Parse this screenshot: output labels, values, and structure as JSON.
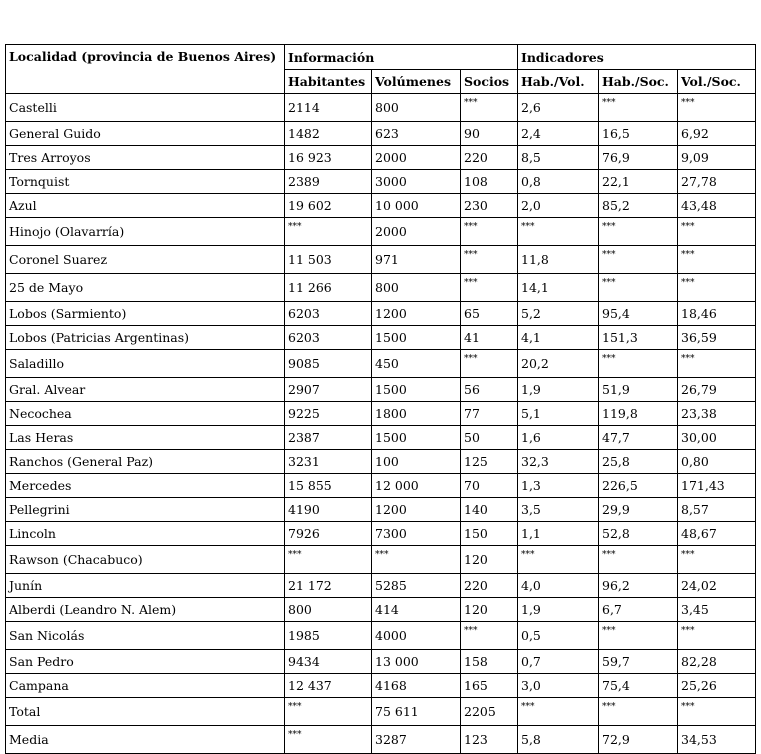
{
  "table": {
    "header": {
      "locality": "Localidad (provincia de Buenos Aires)",
      "group_info": "Información",
      "group_indicators": "Indicadores",
      "columns": [
        "Habitantes",
        "Volúmenes",
        "Socios",
        "Hab./Vol.",
        "Hab./Soc.",
        "Vol./Soc."
      ]
    },
    "rows": [
      [
        "Castelli",
        "2114",
        "800",
        "***",
        "2,6",
        "***",
        "***"
      ],
      [
        "General Guido",
        "1482",
        "623",
        "90",
        "2,4",
        "16,5",
        "6,92"
      ],
      [
        "Tres Arroyos",
        "16 923",
        "2000",
        "220",
        "8,5",
        "76,9",
        "9,09"
      ],
      [
        "Tornquist",
        "2389",
        "3000",
        "108",
        "0,8",
        "22,1",
        "27,78"
      ],
      [
        "Azul",
        "19 602",
        "10 000",
        "230",
        "2,0",
        "85,2",
        "43,48"
      ],
      [
        "Hinojo (Olavarría)",
        "***",
        "2000",
        "***",
        "***",
        "***",
        "***"
      ],
      [
        "Coronel Suarez",
        "11 503",
        "971",
        "***",
        "11,8",
        "***",
        "***"
      ],
      [
        "25 de Mayo",
        "11 266",
        "800",
        "***",
        "14,1",
        "***",
        "***"
      ],
      [
        "Lobos (Sarmiento)",
        "6203",
        "1200",
        "65",
        "5,2",
        "95,4",
        "18,46"
      ],
      [
        "Lobos (Patricias Argentinas)",
        "6203",
        "1500",
        "41",
        "4,1",
        "151,3",
        "36,59"
      ],
      [
        "Saladillo",
        "9085",
        "450",
        "***",
        "20,2",
        "***",
        "***"
      ],
      [
        "Gral. Alvear",
        "2907",
        "1500",
        "56",
        "1,9",
        "51,9",
        "26,79"
      ],
      [
        "Necochea",
        "9225",
        "1800",
        "77",
        "5,1",
        "119,8",
        "23,38"
      ],
      [
        "Las Heras",
        "2387",
        "1500",
        "50",
        "1,6",
        "47,7",
        "30,00"
      ],
      [
        "Ranchos (General Paz)",
        "3231",
        "100",
        "125",
        "32,3",
        "25,8",
        "0,80"
      ],
      [
        "Mercedes",
        "15 855",
        "12 000",
        "70",
        "1,3",
        "226,5",
        "171,43"
      ],
      [
        "Pellegrini",
        "4190",
        "1200",
        "140",
        "3,5",
        "29,9",
        "8,57"
      ],
      [
        "Lincoln",
        "7926",
        "7300",
        "150",
        "1,1",
        "52,8",
        "48,67"
      ],
      [
        "Rawson (Chacabuco)",
        "***",
        "***",
        "120",
        "***",
        "***",
        "***"
      ],
      [
        "Junín",
        "21 172",
        "5285",
        "220",
        "4,0",
        "96,2",
        "24,02"
      ],
      [
        "Alberdi (Leandro N. Alem)",
        "800",
        "414",
        "120",
        "1,9",
        "6,7",
        "3,45"
      ],
      [
        "San Nicolás",
        "1985",
        "4000",
        "***",
        "0,5",
        "***",
        "***"
      ],
      [
        "San Pedro",
        "9434",
        "13 000",
        "158",
        "0,7",
        "59,7",
        "82,28"
      ],
      [
        "Campana",
        "12 437",
        "4168",
        "165",
        "3,0",
        "75,4",
        "25,26"
      ],
      [
        "Total",
        "***",
        "75 611",
        "2205",
        "***",
        "***",
        "***"
      ],
      [
        "Media",
        "***",
        "3287",
        "123",
        "5,8",
        "72,9",
        "34,53"
      ]
    ]
  }
}
